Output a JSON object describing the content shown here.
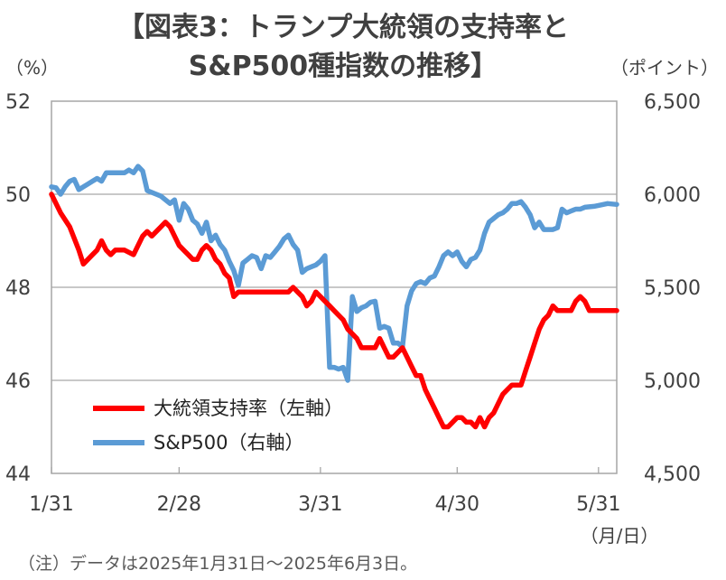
{
  "chart_data": {
    "type": "line",
    "title_line1": "【図表3：トランプ大統領の支持率と",
    "title_line2": "S&P500種指数の推移】",
    "left_unit": "（%）",
    "right_unit": "（ポイント）",
    "x_unit": "（月/日）",
    "note": "（注）データは2025年1月31日～2025年6月3日。",
    "x_tick_labels": [
      "1/31",
      "2/28",
      "3/31",
      "4/30",
      "5/31"
    ],
    "x_tick_days": [
      0,
      28,
      59,
      89,
      120
    ],
    "x_range_days": [
      0,
      124
    ],
    "left_axis": {
      "ylim": [
        44,
        52
      ],
      "ticks": [
        "44",
        "46",
        "48",
        "50",
        "52"
      ]
    },
    "right_axis": {
      "ylim": [
        4500,
        6500
      ],
      "ticks": [
        "4,500",
        "5,000",
        "5,500",
        "6,000",
        "6,500"
      ]
    },
    "grid": "horizontal",
    "legend_placement": "bottom-left",
    "series": [
      {
        "name": "大統領支持率（左軸）",
        "axis": "left",
        "color": "#ff0000",
        "points": [
          [
            0,
            50.0
          ],
          [
            2,
            49.6
          ],
          [
            4,
            49.3
          ],
          [
            6,
            48.8
          ],
          [
            7,
            48.5
          ],
          [
            9,
            48.7
          ],
          [
            10,
            48.8
          ],
          [
            11,
            49.0
          ],
          [
            12,
            48.8
          ],
          [
            13,
            48.7
          ],
          [
            14,
            48.8
          ],
          [
            16,
            48.8
          ],
          [
            18,
            48.7
          ],
          [
            19,
            48.9
          ],
          [
            20,
            49.1
          ],
          [
            21,
            49.2
          ],
          [
            22,
            49.1
          ],
          [
            24,
            49.3
          ],
          [
            25,
            49.4
          ],
          [
            26,
            49.3
          ],
          [
            27,
            49.1
          ],
          [
            28,
            48.9
          ],
          [
            29,
            48.8
          ],
          [
            30,
            48.7
          ],
          [
            31,
            48.6
          ],
          [
            32,
            48.6
          ],
          [
            33,
            48.8
          ],
          [
            34,
            48.9
          ],
          [
            35,
            48.8
          ],
          [
            36,
            48.6
          ],
          [
            37,
            48.5
          ],
          [
            38,
            48.3
          ],
          [
            39,
            48.2
          ],
          [
            40,
            47.8
          ],
          [
            41,
            47.9
          ],
          [
            42,
            47.9
          ],
          [
            44,
            47.9
          ],
          [
            46,
            47.9
          ],
          [
            50,
            47.9
          ],
          [
            52,
            47.9
          ],
          [
            53,
            48.0
          ],
          [
            54,
            47.9
          ],
          [
            55,
            47.8
          ],
          [
            56,
            47.6
          ],
          [
            57,
            47.7
          ],
          [
            58,
            47.9
          ],
          [
            59,
            47.8
          ],
          [
            60,
            47.7
          ],
          [
            61,
            47.6
          ],
          [
            62,
            47.5
          ],
          [
            63,
            47.4
          ],
          [
            64,
            47.3
          ],
          [
            65,
            47.1
          ],
          [
            67,
            46.9
          ],
          [
            68,
            46.7
          ],
          [
            70,
            46.7
          ],
          [
            71,
            46.7
          ],
          [
            72,
            46.9
          ],
          [
            73,
            46.7
          ],
          [
            74,
            46.5
          ],
          [
            75,
            46.5
          ],
          [
            76,
            46.6
          ],
          [
            77,
            46.7
          ],
          [
            78,
            46.5
          ],
          [
            79,
            46.3
          ],
          [
            80,
            46.1
          ],
          [
            81,
            46.1
          ],
          [
            82,
            45.8
          ],
          [
            83,
            45.6
          ],
          [
            84,
            45.4
          ],
          [
            85,
            45.2
          ],
          [
            86,
            45.0
          ],
          [
            87,
            45.0
          ],
          [
            88,
            45.1
          ],
          [
            89,
            45.2
          ],
          [
            90,
            45.2
          ],
          [
            91,
            45.1
          ],
          [
            92,
            45.1
          ],
          [
            93,
            45.0
          ],
          [
            94,
            45.2
          ],
          [
            95,
            45.0
          ],
          [
            96,
            45.2
          ],
          [
            97,
            45.3
          ],
          [
            98,
            45.5
          ],
          [
            99,
            45.7
          ],
          [
            100,
            45.8
          ],
          [
            101,
            45.9
          ],
          [
            102,
            45.9
          ],
          [
            103,
            45.9
          ],
          [
            104,
            46.2
          ],
          [
            105,
            46.5
          ],
          [
            106,
            46.8
          ],
          [
            107,
            47.1
          ],
          [
            108,
            47.3
          ],
          [
            109,
            47.4
          ],
          [
            110,
            47.6
          ],
          [
            111,
            47.5
          ],
          [
            112,
            47.5
          ],
          [
            114,
            47.5
          ],
          [
            115,
            47.7
          ],
          [
            116,
            47.8
          ],
          [
            117,
            47.7
          ],
          [
            118,
            47.5
          ],
          [
            120,
            47.5
          ],
          [
            122,
            47.5
          ],
          [
            124,
            47.5
          ]
        ]
      },
      {
        "name": "S&P500（右軸）",
        "axis": "right",
        "color": "#5b9bd5",
        "points": [
          [
            0,
            6040
          ],
          [
            1,
            6035
          ],
          [
            2,
            6000
          ],
          [
            3,
            6040
          ],
          [
            4,
            6070
          ],
          [
            5,
            6080
          ],
          [
            6,
            6025
          ],
          [
            7,
            6040
          ],
          [
            8,
            6055
          ],
          [
            9,
            6070
          ],
          [
            10,
            6085
          ],
          [
            11,
            6070
          ],
          [
            12,
            6115
          ],
          [
            13,
            6115
          ],
          [
            15,
            6115
          ],
          [
            16,
            6115
          ],
          [
            17,
            6130
          ],
          [
            18,
            6115
          ],
          [
            19,
            6150
          ],
          [
            20,
            6125
          ],
          [
            21,
            6020
          ],
          [
            23,
            6000
          ],
          [
            24,
            5990
          ],
          [
            26,
            5950
          ],
          [
            27,
            5970
          ],
          [
            28,
            5860
          ],
          [
            29,
            5950
          ],
          [
            30,
            5920
          ],
          [
            31,
            5860
          ],
          [
            32,
            5840
          ],
          [
            33,
            5790
          ],
          [
            34,
            5850
          ],
          [
            35,
            5750
          ],
          [
            36,
            5780
          ],
          [
            37,
            5730
          ],
          [
            38,
            5700
          ],
          [
            39,
            5640
          ],
          [
            40,
            5590
          ],
          [
            41,
            5510
          ],
          [
            42,
            5630
          ],
          [
            43,
            5650
          ],
          [
            44,
            5670
          ],
          [
            45,
            5660
          ],
          [
            46,
            5600
          ],
          [
            47,
            5670
          ],
          [
            48,
            5660
          ],
          [
            49,
            5690
          ],
          [
            50,
            5720
          ],
          [
            51,
            5760
          ],
          [
            52,
            5780
          ],
          [
            53,
            5730
          ],
          [
            54,
            5700
          ],
          [
            55,
            5580
          ],
          [
            56,
            5600
          ],
          [
            57,
            5610
          ],
          [
            58,
            5620
          ],
          [
            59,
            5640
          ],
          [
            60,
            5670
          ],
          [
            61,
            5070
          ],
          [
            62,
            5070
          ],
          [
            63,
            5060
          ],
          [
            64,
            5070
          ],
          [
            65,
            5000
          ],
          [
            66,
            5450
          ],
          [
            67,
            5370
          ],
          [
            68,
            5390
          ],
          [
            69,
            5400
          ],
          [
            70,
            5420
          ],
          [
            71,
            5425
          ],
          [
            72,
            5280
          ],
          [
            73,
            5290
          ],
          [
            74,
            5280
          ],
          [
            75,
            5200
          ],
          [
            76,
            5200
          ],
          [
            77,
            5180
          ],
          [
            78,
            5400
          ],
          [
            79,
            5480
          ],
          [
            80,
            5520
          ],
          [
            81,
            5530
          ],
          [
            82,
            5520
          ],
          [
            83,
            5550
          ],
          [
            84,
            5560
          ],
          [
            85,
            5610
          ],
          [
            86,
            5670
          ],
          [
            87,
            5690
          ],
          [
            88,
            5670
          ],
          [
            89,
            5690
          ],
          [
            90,
            5640
          ],
          [
            91,
            5610
          ],
          [
            92,
            5650
          ],
          [
            93,
            5660
          ],
          [
            94,
            5700
          ],
          [
            95,
            5790
          ],
          [
            96,
            5850
          ],
          [
            97,
            5870
          ],
          [
            98,
            5890
          ],
          [
            99,
            5900
          ],
          [
            100,
            5920
          ],
          [
            101,
            5950
          ],
          [
            102,
            5950
          ],
          [
            103,
            5960
          ],
          [
            104,
            5930
          ],
          [
            105,
            5890
          ],
          [
            106,
            5820
          ],
          [
            107,
            5850
          ],
          [
            108,
            5810
          ],
          [
            109,
            5810
          ],
          [
            110,
            5810
          ],
          [
            111,
            5820
          ],
          [
            112,
            5920
          ],
          [
            113,
            5900
          ],
          [
            114,
            5910
          ],
          [
            115,
            5920
          ],
          [
            116,
            5920
          ],
          [
            117,
            5930
          ],
          [
            119,
            5935
          ],
          [
            120,
            5940
          ],
          [
            122,
            5950
          ],
          [
            124,
            5945
          ]
        ]
      }
    ]
  }
}
